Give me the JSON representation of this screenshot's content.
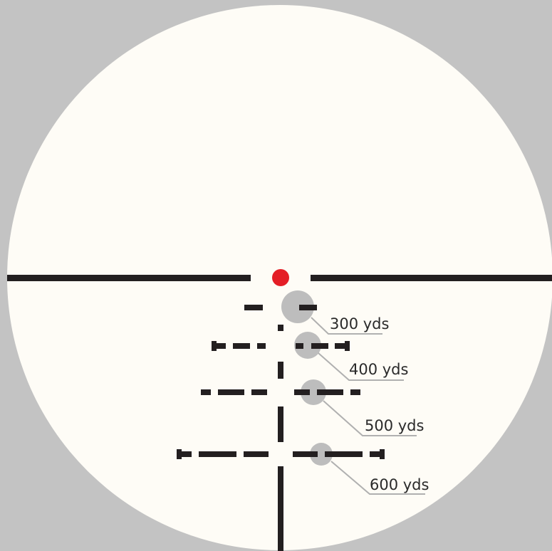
{
  "colors": {
    "background": "#c3c3c3",
    "scope_field": "#fefcf6",
    "reticle": "#231f20",
    "aim_dot": "#e41e26",
    "impact_marker": "#bdbdbd",
    "leader_line": "#b0b0b0"
  },
  "aim_point": {
    "shape": "red-dot"
  },
  "ranges": [
    {
      "label": "300 yds"
    },
    {
      "label": "400 yds"
    },
    {
      "label": "500 yds"
    },
    {
      "label": "600 yds"
    }
  ]
}
